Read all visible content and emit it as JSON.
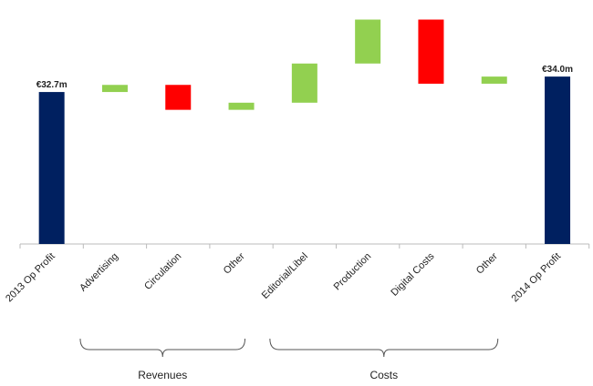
{
  "chart_data": {
    "type": "waterfall",
    "categories": [
      "2013 Op Profit",
      "Advertising",
      "Circulation",
      "Other",
      "Editorial/Libel",
      "Production",
      "Digital Costs",
      "Other",
      "2014 Op Profit"
    ],
    "values": [
      32.7,
      0.6,
      -2.1,
      0.6,
      3.3,
      3.7,
      -5.4,
      0.6,
      34.0
    ],
    "value_labels": [
      "€32.7m",
      null,
      null,
      null,
      null,
      null,
      null,
      null,
      "€34.0m"
    ],
    "is_total": [
      true,
      false,
      false,
      false,
      false,
      false,
      false,
      false,
      true
    ],
    "colors": {
      "total": "#002060",
      "increase": "#92d050",
      "decrease": "#ff0000"
    },
    "ylim": [
      19.9,
      39.3
    ],
    "groups": [
      "Revenues",
      "Costs"
    ]
  }
}
